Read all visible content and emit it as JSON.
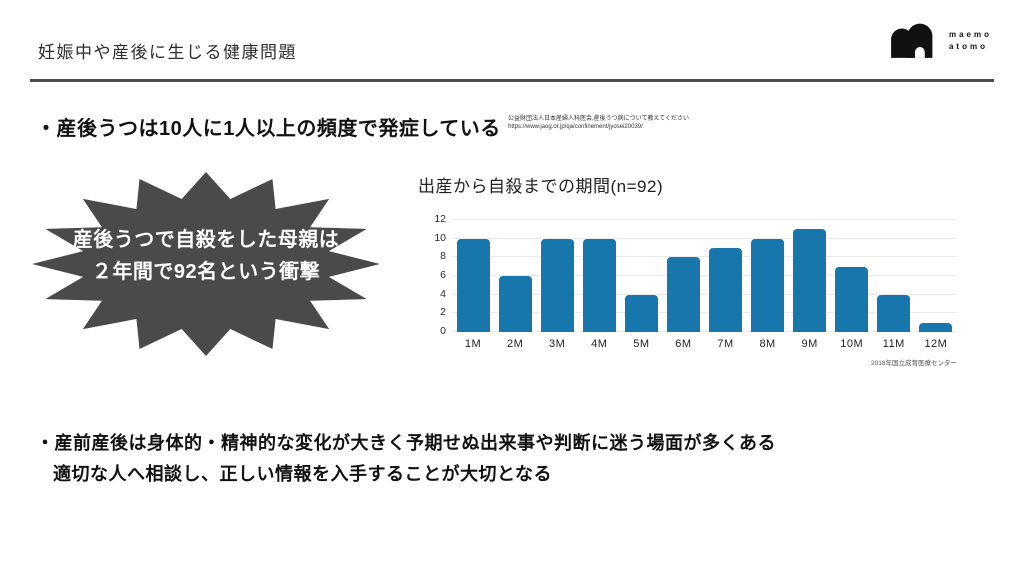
{
  "slide": {
    "title": "妊娠中や産後に生じる健康問題"
  },
  "logo": {
    "icon": "maemo-atomo-double-arch",
    "line1": "maemo",
    "line2": "atomo",
    "color": "#111111"
  },
  "bullet1": {
    "text": "・産後うつは10人に1人以上の頻度で発症している"
  },
  "citation": {
    "line1": "公益財団法人日本産婦人科医会,産後うつ病について教えてください",
    "line2": "https://www.jaog.or.jp/qa/confinement/jyosei20039/"
  },
  "starburst": {
    "line1": "産後うつで自殺をした母親は",
    "line2": "２年間で92名という衝撃",
    "fill_color": "#4a4a4a",
    "text_color": "#ffffff"
  },
  "chart_data": {
    "type": "bar",
    "title": "出産から自殺までの期間(n=92)",
    "categories": [
      "1M",
      "2M",
      "3M",
      "4M",
      "5M",
      "6M",
      "7M",
      "8M",
      "9M",
      "10M",
      "11M",
      "12M"
    ],
    "values": [
      10,
      6,
      10,
      10,
      4,
      8,
      9,
      10,
      11,
      7,
      4,
      1
    ],
    "xlabel": "",
    "ylabel": "",
    "ylim": [
      0,
      12
    ],
    "yticks": [
      0,
      2,
      4,
      6,
      8,
      10,
      12
    ],
    "grid": true,
    "legend": false,
    "bar_color": "#1777ac",
    "source": "2018年国立成育医療センター"
  },
  "bullet2": {
    "line1": "・産前産後は身体的・精神的な変化が大きく予期せぬ出来事や判断に迷う場面が多くある",
    "line2": "適切な人へ相談し、正しい情報を入手することが大切となる"
  }
}
